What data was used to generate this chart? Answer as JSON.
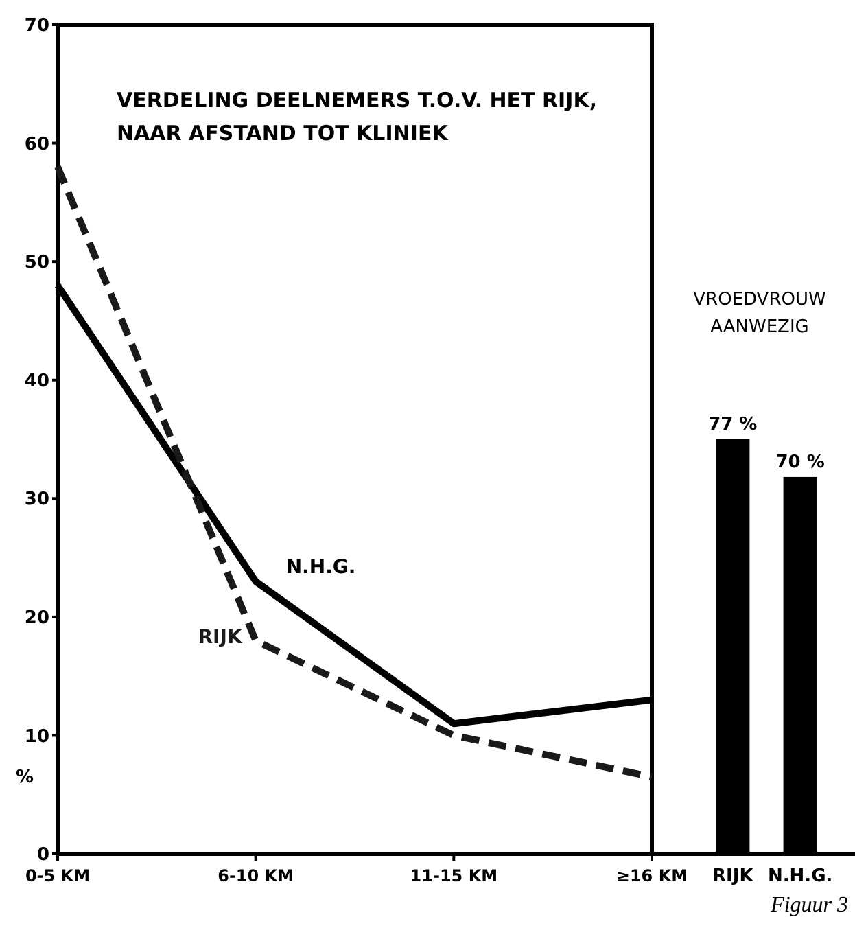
{
  "chart_data": [
    {
      "type": "line",
      "title": "VERDELING DEELNEMERS T.O.V. HET RIJK, NAAR AFSTAND TOT KLINIEK",
      "ylabel": "%",
      "categories": [
        "0-5 KM",
        "6-10 KM",
        "11-15 KM",
        "≥16 KM"
      ],
      "ylim": [
        0,
        70
      ],
      "yticks": [
        0,
        10,
        20,
        30,
        40,
        50,
        60,
        70
      ],
      "grid": false,
      "legend": false,
      "marker": "none",
      "series": [
        {
          "name": "N.H.G.",
          "color": "#000000",
          "line_style": "solid",
          "values": [
            48,
            23,
            11,
            13
          ]
        },
        {
          "name": "RIJK",
          "color": "#1a1a1a",
          "line_style": "dashed",
          "values": [
            58,
            18,
            10,
            6.5
          ]
        }
      ]
    },
    {
      "type": "bar",
      "title": "VROEDVROUW AANWEZIG",
      "categories": [
        "RIJK",
        "N.H.G."
      ],
      "values": [
        77,
        70
      ],
      "colors": [
        "#000000",
        "#000000"
      ],
      "value_labels": [
        "77 %",
        "70 %"
      ],
      "annotations": [
        "Figuur 3"
      ]
    }
  ]
}
